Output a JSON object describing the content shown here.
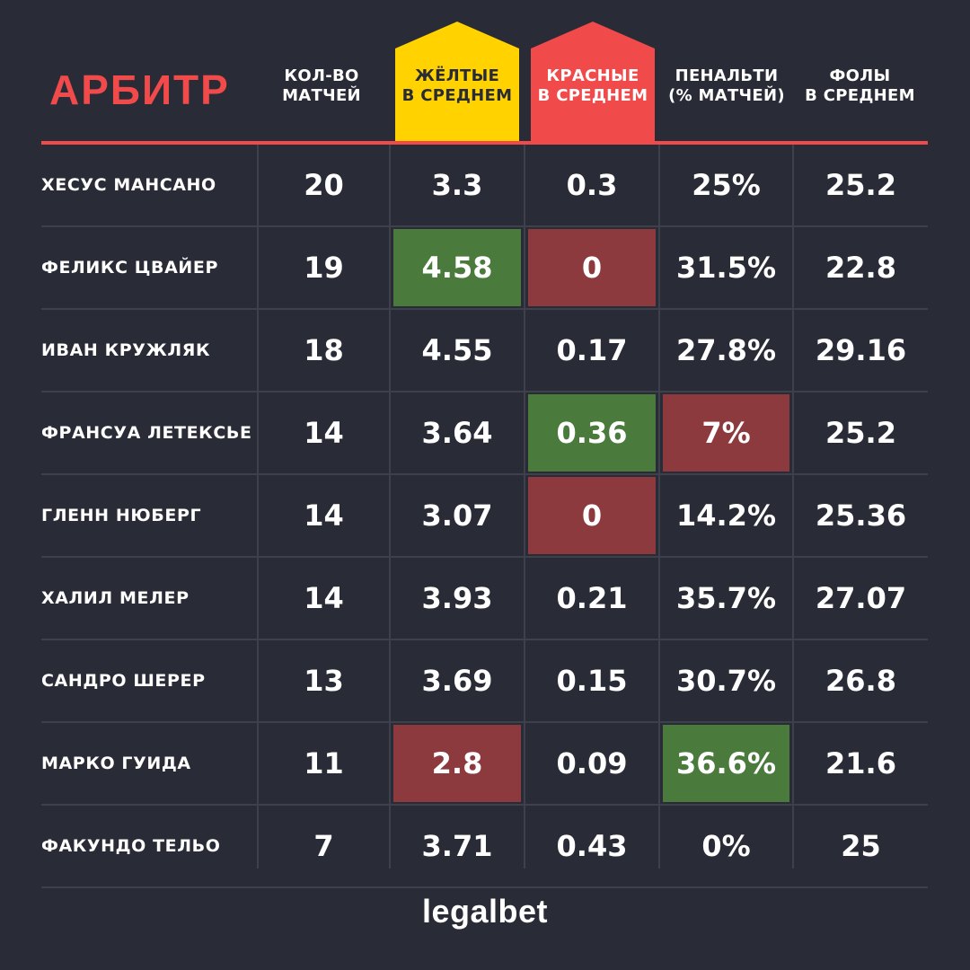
{
  "title": "АРБИТР",
  "columns": [
    {
      "label_1": "КОЛ-ВО",
      "label_2": "МАТЧЕЙ"
    },
    {
      "label_1": "ЖЁЛТЫЕ",
      "label_2": "В СРЕДНЕМ"
    },
    {
      "label_1": "КРАСНЫЕ",
      "label_2": "В СРЕДНЕМ"
    },
    {
      "label_1": "ПЕНАЛЬТИ",
      "label_2": "(% МАТЧЕЙ)"
    },
    {
      "label_1": "ФОЛЫ",
      "label_2": "В СРЕДНЕМ"
    }
  ],
  "colors": {
    "background": "#292c36",
    "accent_red": "#f04a4a",
    "yellow": "#ffd200",
    "highlight_green": "#4a7a3c",
    "highlight_red": "#8d3a3f"
  },
  "rows": [
    {
      "name": "ХЕСУС МАНСАНО",
      "matches": "20",
      "yellow": "3.3",
      "red": "0.3",
      "penalty": "25%",
      "fouls": "25.2",
      "hl": {}
    },
    {
      "name": "ФЕЛИКС ЦВАЙЕР",
      "matches": "19",
      "yellow": "4.58",
      "red": "0",
      "penalty": "31.5%",
      "fouls": "22.8",
      "hl": {
        "yellow": "green",
        "red": "red"
      }
    },
    {
      "name": "ИВАН КРУЖЛЯК",
      "matches": "18",
      "yellow": "4.55",
      "red": "0.17",
      "penalty": "27.8%",
      "fouls": "29.16",
      "hl": {}
    },
    {
      "name": "ФРАНСУА ЛЕТЕКСЬЕ",
      "matches": "14",
      "yellow": "3.64",
      "red": "0.36",
      "penalty": "7%",
      "fouls": "25.2",
      "hl": {
        "red": "green",
        "penalty": "red"
      }
    },
    {
      "name": "ГЛЕНН НЮБЕРГ",
      "matches": "14",
      "yellow": "3.07",
      "red": "0",
      "penalty": "14.2%",
      "fouls": "25.36",
      "hl": {
        "red": "red"
      }
    },
    {
      "name": "ХАЛИЛ МЕЛЕР",
      "matches": "14",
      "yellow": "3.93",
      "red": "0.21",
      "penalty": "35.7%",
      "fouls": "27.07",
      "hl": {}
    },
    {
      "name": "САНДРО ШЕРЕР",
      "matches": "13",
      "yellow": "3.69",
      "red": "0.15",
      "penalty": "30.7%",
      "fouls": "26.8",
      "hl": {}
    },
    {
      "name": "МАРКО ГУИДА",
      "matches": "11",
      "yellow": "2.8",
      "red": "0.09",
      "penalty": "36.6%",
      "fouls": "21.6",
      "hl": {
        "yellow": "red",
        "penalty": "green"
      }
    },
    {
      "name": "ФАКУНДО ТЕЛЬО",
      "matches": "7",
      "yellow": "3.71",
      "red": "0.43",
      "penalty": "0%",
      "fouls": "25",
      "hl": {}
    }
  ],
  "brand": "legalbet"
}
